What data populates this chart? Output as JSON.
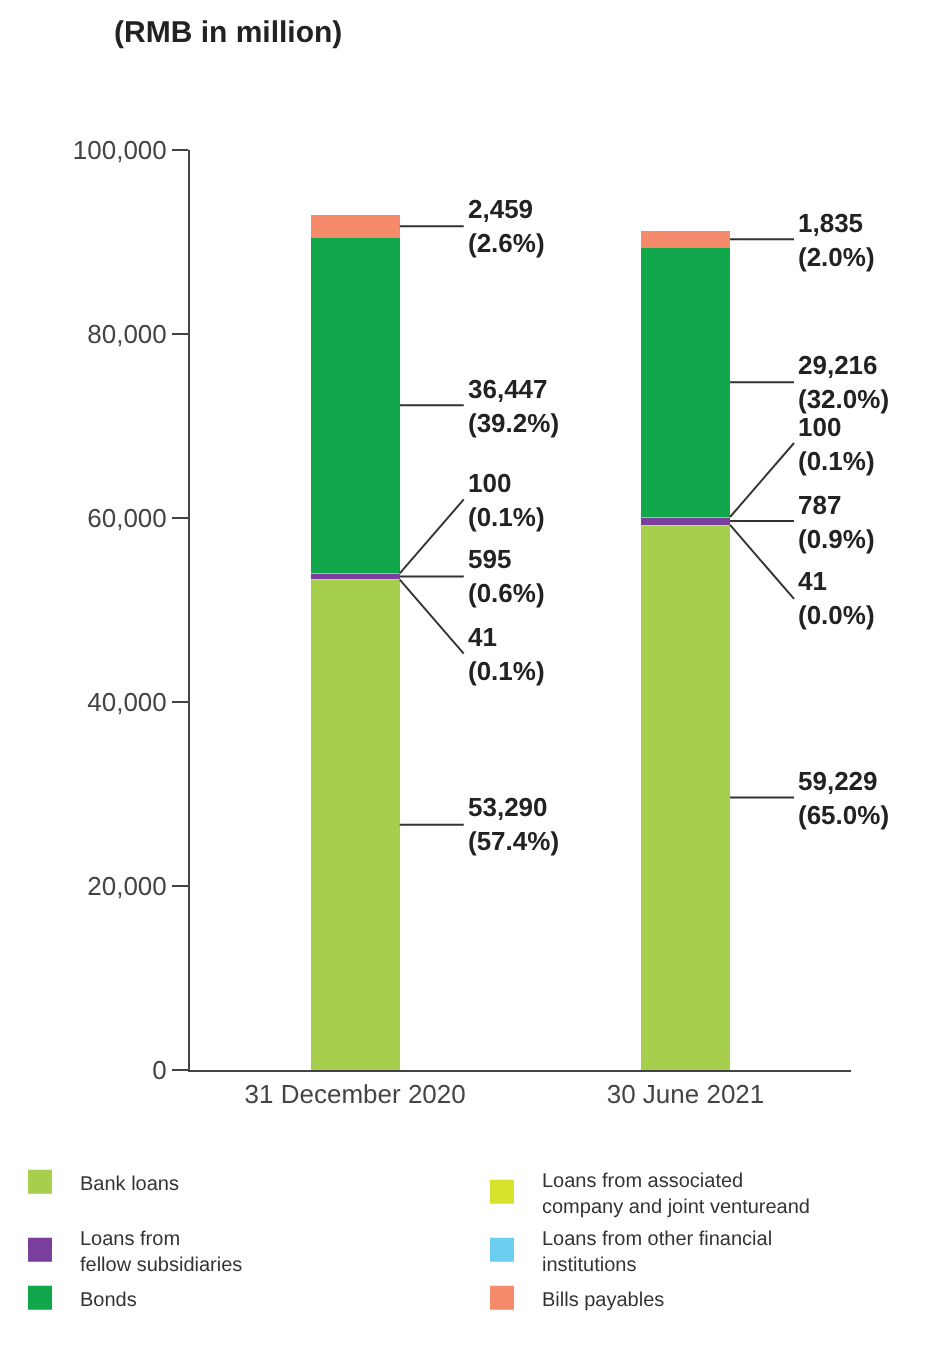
{
  "chart_data": {
    "type": "bar",
    "stacked": true,
    "title": "(RMB in million)",
    "categories": [
      "31 December 2020",
      "30 June 2021"
    ],
    "series": [
      {
        "name": "Bank loans",
        "color": "#a5cf4c",
        "values": [
          53290,
          59229
        ],
        "value_labels": [
          "53,290\n(57.4%)",
          "59,229\n(65.0%)"
        ]
      },
      {
        "name": "Loans from associated\ncompany and joint ventureand",
        "color": "#d8e22c",
        "values": [
          41,
          41
        ],
        "value_labels": [
          "41\n(0.1%)",
          "41\n(0.0%)"
        ]
      },
      {
        "name": "Loans from\nfellow subsidiaries",
        "color": "#7a3f9c",
        "values": [
          595,
          787
        ],
        "value_labels": [
          "595\n(0.6%)",
          "787\n(0.9%)"
        ]
      },
      {
        "name": "Loans from other financial\ninstitutions",
        "color": "#6ccff2",
        "values": [
          100,
          100
        ],
        "value_labels": [
          "100\n(0.1%)",
          "100\n(0.1%)"
        ]
      },
      {
        "name": "Bonds",
        "color": "#10a84a",
        "values": [
          36447,
          29216
        ],
        "value_labels": [
          "36,447\n(39.2%)",
          "29,216\n(32.0%)"
        ]
      },
      {
        "name": "Bills payables",
        "color": "#f68b6c",
        "values": [
          2459,
          1835
        ],
        "value_labels": [
          "2,459\n(2.6%)",
          "1,835\n(2.0%)"
        ]
      }
    ],
    "ylim": [
      0,
      100000
    ],
    "yticks": [
      {
        "value": 0,
        "label": "0"
      },
      {
        "value": 20000,
        "label": "20,000"
      },
      {
        "value": 40000,
        "label": "40,000"
      },
      {
        "value": 60000,
        "label": "60,000"
      },
      {
        "value": 80000,
        "label": "80,000"
      },
      {
        "value": 100000,
        "label": "100,000"
      }
    ],
    "grid": false,
    "legend": "bottom"
  }
}
